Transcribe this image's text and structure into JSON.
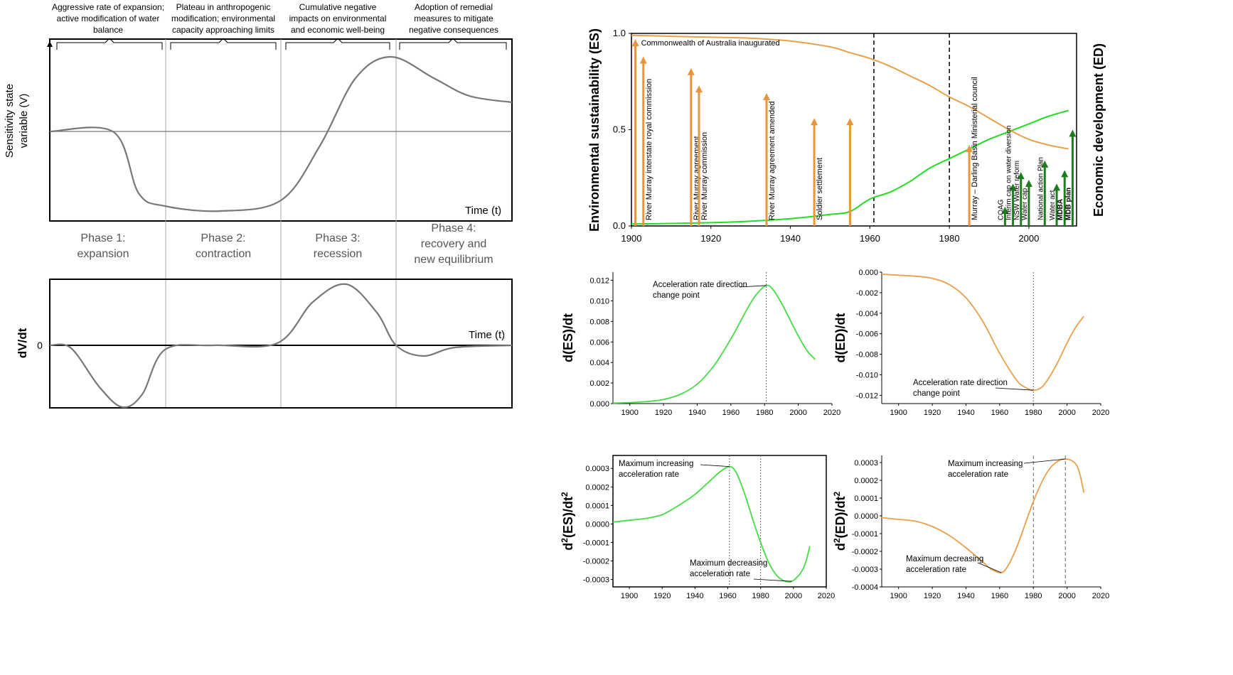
{
  "conceptual": {
    "phase_headers": [
      [
        "Aggressive rate of expansion;",
        "active modification of water",
        "balance"
      ],
      [
        "Plateau in anthropogenic",
        "modification; environmental",
        "capacity approaching limits"
      ],
      [
        "Cumulative negative",
        "impacts on environmental",
        "and economic well-being"
      ],
      [
        "Adoption of remedial",
        "measures to mitigate",
        "negative consequences"
      ]
    ],
    "phase_labels": [
      [
        "Phase 1:",
        "expansion"
      ],
      [
        "Phase 2:",
        "contraction"
      ],
      [
        "Phase 3:",
        "recession"
      ],
      [
        "Phase 4:",
        "recovery and",
        "new equilibrium"
      ]
    ],
    "top_ylabel": [
      "Sensitivity  state",
      "variable (V)"
    ],
    "top_xlabel": "Time (t)",
    "bottom_ylabel": "dV/dt",
    "bottom_xlabel": "Time (t)",
    "bottom_zero": "0",
    "line_color": "#777777"
  },
  "chart_data": [
    {
      "id": "main",
      "type": "line",
      "ylabel_left": "Environmental sustainability (ES)",
      "ylabel_right": "Economic development (ED)",
      "xlim": [
        1900,
        2012
      ],
      "ylim": [
        0,
        1
      ],
      "x_ticks": [
        1900,
        1920,
        1940,
        1960,
        1980,
        2000
      ],
      "y_ticks": [
        "0.0",
        "0.5",
        "1.0"
      ],
      "vlines": [
        1961,
        1980
      ],
      "series": [
        {
          "name": "ES",
          "color": "#22dd22",
          "x": [
            1900,
            1910,
            1920,
            1930,
            1940,
            1950,
            1955,
            1960,
            1965,
            1970,
            1975,
            1980,
            1985,
            1990,
            1995,
            2000,
            2005,
            2010
          ],
          "values": [
            0.01,
            0.013,
            0.017,
            0.025,
            0.038,
            0.06,
            0.075,
            0.14,
            0.175,
            0.23,
            0.3,
            0.35,
            0.4,
            0.45,
            0.49,
            0.53,
            0.57,
            0.6
          ]
        },
        {
          "name": "ED",
          "color": "#e8a04a",
          "x": [
            1900,
            1910,
            1920,
            1930,
            1940,
            1950,
            1955,
            1960,
            1965,
            1970,
            1975,
            1980,
            1985,
            1990,
            1995,
            2000,
            2005,
            2010
          ],
          "values": [
            0.99,
            0.985,
            0.98,
            0.975,
            0.96,
            0.93,
            0.9,
            0.87,
            0.83,
            0.78,
            0.73,
            0.67,
            0.62,
            0.56,
            0.5,
            0.45,
            0.42,
            0.4
          ]
        }
      ],
      "events_orange": [
        {
          "year": 1901,
          "top": 0.97,
          "label": "Commonwealth of Australia inaugurated"
        },
        {
          "year": 1903,
          "top": 0.88,
          "label": "River Murray interstate royal commission"
        },
        {
          "year": 1915,
          "top": 0.82,
          "label": "River Murray agreement"
        },
        {
          "year": 1917,
          "top": 0.73,
          "label": "River Murray  commission"
        },
        {
          "year": 1934,
          "top": 0.69,
          "label": "River Murray agreement amended"
        },
        {
          "year": 1946,
          "top": 0.56,
          "label": "Soldier  settlement"
        },
        {
          "year": 1955,
          "top": 0.56,
          "label": ""
        },
        {
          "year": 1985,
          "top": 0.42,
          "label": "Murray – Darling Basin Ministerial council"
        }
      ],
      "events_green": [
        {
          "year": 1994,
          "top": 0.1,
          "label": "COAG"
        },
        {
          "year": 1996,
          "top": 0.22,
          "label": "Interim cap on water diversion"
        },
        {
          "year": 1998,
          "top": 0.28,
          "label": "NSW Water reform"
        },
        {
          "year": 2000,
          "top": 0.24,
          "label": "Water cap"
        },
        {
          "year": 2004,
          "top": 0.34,
          "label": "National  action Plan"
        },
        {
          "year": 2007,
          "top": 0.22,
          "label": "Water  act"
        },
        {
          "year": 2009,
          "top": 0.29,
          "label": "MDBA"
        },
        {
          "year": 2011,
          "top": 0.5,
          "label": "MDB plan"
        }
      ]
    },
    {
      "id": "dES",
      "type": "line",
      "color": "#44dd44",
      "ylabel": "d(ES)/dt",
      "xlim": [
        1890,
        2020
      ],
      "ylim": [
        0,
        0.0128
      ],
      "x_ticks": [
        1900,
        1920,
        1940,
        1960,
        1980,
        2000,
        2020
      ],
      "y_ticks": [
        0,
        0.002,
        0.004,
        0.006,
        0.008,
        0.01,
        0.012
      ],
      "y_tick_labels": [
        "0.000",
        "0.002",
        "0.004",
        "0.006",
        "0.008",
        "0.010",
        "0.012"
      ],
      "vlines": [
        1981
      ],
      "x": [
        1890,
        1900,
        1910,
        1920,
        1930,
        1940,
        1950,
        1960,
        1970,
        1975,
        1981,
        1985,
        1990,
        1995,
        2000,
        2005,
        2010
      ],
      "values": [
        5e-05,
        0.0001,
        0.0002,
        0.0004,
        0.0009,
        0.0019,
        0.0037,
        0.0063,
        0.0093,
        0.0106,
        0.0115,
        0.0111,
        0.0098,
        0.0082,
        0.0066,
        0.0052,
        0.0043
      ],
      "annotation": {
        "text": [
          "Acceleration rate direction",
          "change point"
        ],
        "x": 1981,
        "y": 0.0115
      }
    },
    {
      "id": "dED",
      "type": "line",
      "color": "#e8a04a",
      "ylabel": "d(ED)/dt",
      "xlim": [
        1890,
        2020
      ],
      "ylim": [
        -0.0128,
        0
      ],
      "x_ticks": [
        1900,
        1920,
        1940,
        1960,
        1980,
        2000,
        2020
      ],
      "y_ticks": [
        0,
        -0.002,
        -0.004,
        -0.006,
        -0.008,
        -0.01,
        -0.012
      ],
      "y_tick_labels": [
        "0.000",
        "-0.002",
        "-0.004",
        "-0.006",
        "-0.008",
        "-0.010",
        "-0.012"
      ],
      "vlines": [
        1980
      ],
      "x": [
        1890,
        1900,
        1910,
        1920,
        1930,
        1940,
        1950,
        1960,
        1970,
        1975,
        1980,
        1985,
        1990,
        1995,
        2000,
        2005,
        2010
      ],
      "values": [
        -0.0002,
        -0.0003,
        -0.0004,
        -0.0006,
        -0.0012,
        -0.0025,
        -0.0048,
        -0.0079,
        -0.0105,
        -0.0112,
        -0.0115,
        -0.0112,
        -0.0101,
        -0.0086,
        -0.0069,
        -0.0054,
        -0.0043
      ],
      "annotation": {
        "text": [
          "Acceleration rate direction",
          "change point"
        ],
        "x": 1980,
        "y": -0.0115
      }
    },
    {
      "id": "d2ES",
      "type": "line",
      "color": "#44dd44",
      "ylabel": "d²(ES)/dt²",
      "xlim": [
        1890,
        2020
      ],
      "ylim": [
        -0.00034,
        0.00037
      ],
      "x_ticks": [
        1900,
        1920,
        1940,
        1960,
        1980,
        2000,
        2020
      ],
      "y_ticks": [
        0.0003,
        0.0002,
        0.0001,
        0,
        -0.0001,
        -0.0002,
        -0.0003
      ],
      "y_tick_labels": [
        "0.0003",
        "0.0002",
        "0.0001",
        "0.0000",
        "-0.0001",
        "-0.0002",
        "-0.0003"
      ],
      "vlines": [
        1961,
        1980
      ],
      "x": [
        1890,
        1900,
        1910,
        1920,
        1930,
        1940,
        1950,
        1955,
        1961,
        1965,
        1970,
        1975,
        1980,
        1985,
        1990,
        1995,
        1999,
        2003,
        2006,
        2008,
        2010
      ],
      "values": [
        1e-05,
        2e-05,
        3e-05,
        5e-05,
        0.0001,
        0.00016,
        0.00024,
        0.00028,
        0.00031,
        0.00028,
        0.00017,
        3e-05,
        -0.0001,
        -0.00021,
        -0.00028,
        -0.00031,
        -0.00031,
        -0.00028,
        -0.00024,
        -0.00019,
        -0.00012
      ],
      "annotations": [
        {
          "text": [
            "Maximum increasing",
            "acceleration rate"
          ],
          "x": 1961,
          "y": 0.00031
        },
        {
          "text": [
            "Maximum decreasing",
            "acceleration rate"
          ],
          "x": 1999,
          "y": -0.00031
        }
      ]
    },
    {
      "id": "d2ED",
      "type": "line",
      "color": "#e8a04a",
      "ylabel": "d²(ED)/dt²",
      "xlim": [
        1890,
        2020
      ],
      "ylim": [
        -0.0004,
        0.00034
      ],
      "x_ticks": [
        1900,
        1920,
        1940,
        1960,
        1980,
        2000,
        2020
      ],
      "y_ticks": [
        0.0003,
        0.0002,
        0.0001,
        0,
        -0.0001,
        -0.0002,
        -0.0003,
        -0.0004
      ],
      "y_tick_labels": [
        "0.0003",
        "0.0002",
        "0.0001",
        "0.0000",
        "-0.0001",
        "-0.0002",
        "-0.0003",
        "-0.0004"
      ],
      "vlines": [
        1980,
        1999
      ],
      "x": [
        1890,
        1900,
        1910,
        1920,
        1930,
        1940,
        1950,
        1955,
        1961,
        1965,
        1970,
        1975,
        1980,
        1985,
        1990,
        1995,
        1999,
        2003,
        2006,
        2008,
        2010
      ],
      "values": [
        -1e-05,
        -2e-05,
        -3e-05,
        -6e-05,
        -0.00011,
        -0.00018,
        -0.00026,
        -0.0003,
        -0.00032,
        -0.00028,
        -0.00018,
        -5e-05,
        8e-05,
        0.00019,
        0.00027,
        0.00031,
        0.00032,
        0.00031,
        0.00028,
        0.00022,
        0.00013
      ],
      "annotations": [
        {
          "text": [
            "Maximum increasing",
            "acceleration rate"
          ],
          "x": 1999,
          "y": 0.00032
        },
        {
          "text": [
            "Maximum decreasing",
            "acceleration rate"
          ],
          "x": 1961,
          "y": -0.00032
        }
      ]
    }
  ]
}
